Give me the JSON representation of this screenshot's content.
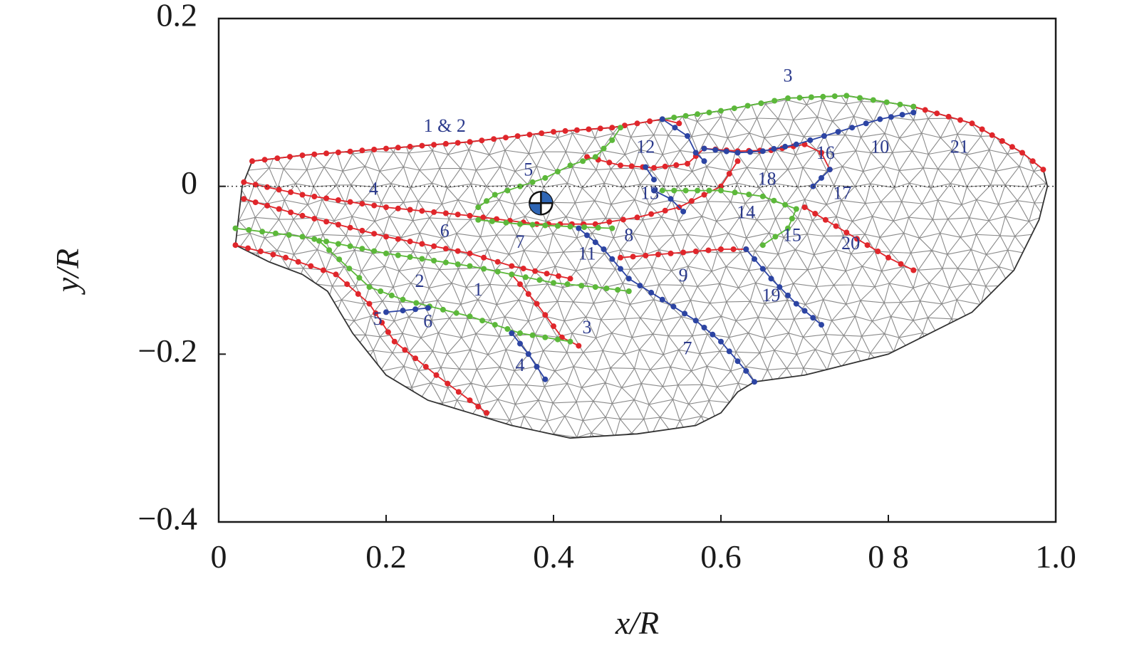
{
  "chart_data": {
    "type": "scatter",
    "title": "",
    "xlabel": "x/R",
    "ylabel": "y/R",
    "xlim": [
      0,
      1.0
    ],
    "ylim": [
      -0.4,
      0.2
    ],
    "x_ticks": [
      0,
      0.2,
      0.4,
      0.6,
      0.8,
      1.0
    ],
    "x_tick_labels": [
      "0",
      "0.2",
      "0.4",
      "0.6",
      "0 8",
      "1.0"
    ],
    "y_ticks": [
      0.2,
      0,
      -0.2,
      -0.4
    ],
    "y_tick_labels": [
      "0.2",
      "0",
      "−0.2",
      "−0.4"
    ],
    "zero_line": true,
    "colors": {
      "red": "#e0262b",
      "green": "#5cb83a",
      "blue": "#2c44a3",
      "mesh": "#8a8a8a",
      "outline": "#333333"
    },
    "outline": [
      [
        0.02,
        -0.07
      ],
      [
        0.06,
        -0.09
      ],
      [
        0.1,
        -0.105
      ],
      [
        0.13,
        -0.125
      ],
      [
        0.16,
        -0.175
      ],
      [
        0.2,
        -0.225
      ],
      [
        0.25,
        -0.255
      ],
      [
        0.3,
        -0.27
      ],
      [
        0.35,
        -0.285
      ],
      [
        0.42,
        -0.3
      ],
      [
        0.5,
        -0.295
      ],
      [
        0.57,
        -0.285
      ],
      [
        0.6,
        -0.27
      ],
      [
        0.62,
        -0.245
      ],
      [
        0.64,
        -0.233
      ],
      [
        0.7,
        -0.225
      ],
      [
        0.8,
        -0.2
      ],
      [
        0.9,
        -0.15
      ],
      [
        0.95,
        -0.1
      ],
      [
        0.98,
        -0.04
      ],
      [
        0.99,
        0.0
      ],
      [
        0.985,
        0.02
      ],
      [
        0.96,
        0.04
      ],
      [
        0.9,
        0.075
      ],
      [
        0.83,
        0.095
      ],
      [
        0.75,
        0.108
      ],
      [
        0.68,
        0.105
      ],
      [
        0.6,
        0.09
      ],
      [
        0.53,
        0.08
      ],
      [
        0.47,
        0.07
      ],
      [
        0.4,
        0.065
      ],
      [
        0.3,
        0.053
      ],
      [
        0.2,
        0.045
      ],
      [
        0.1,
        0.037
      ],
      [
        0.04,
        0.03
      ],
      [
        0.028,
        0.0
      ],
      [
        0.02,
        -0.07
      ]
    ],
    "centroid": {
      "x": 0.385,
      "y": -0.02
    },
    "series": [
      {
        "color": "red",
        "points": [
          [
            0.04,
            0.03
          ],
          [
            0.1,
            0.037
          ],
          [
            0.2,
            0.045
          ],
          [
            0.3,
            0.053
          ],
          [
            0.4,
            0.065
          ],
          [
            0.47,
            0.07
          ],
          [
            0.53,
            0.08
          ],
          [
            0.55,
            0.075
          ]
        ]
      },
      {
        "color": "red",
        "points": [
          [
            0.83,
            0.095
          ],
          [
            0.9,
            0.075
          ],
          [
            0.96,
            0.04
          ],
          [
            0.985,
            0.02
          ]
        ]
      },
      {
        "color": "red",
        "points": [
          [
            0.03,
            0.005
          ],
          [
            0.1,
            -0.01
          ],
          [
            0.2,
            -0.025
          ],
          [
            0.3,
            -0.035
          ],
          [
            0.38,
            -0.045
          ],
          [
            0.45,
            -0.045
          ],
          [
            0.5,
            -0.037
          ],
          [
            0.55,
            -0.025
          ],
          [
            0.58,
            -0.01
          ],
          [
            0.6,
            0.0
          ],
          [
            0.62,
            0.03
          ]
        ]
      },
      {
        "color": "red",
        "points": [
          [
            0.03,
            -0.015
          ],
          [
            0.1,
            -0.035
          ],
          [
            0.2,
            -0.06
          ],
          [
            0.3,
            -0.08
          ],
          [
            0.35,
            -0.095
          ],
          [
            0.42,
            -0.11
          ]
        ]
      },
      {
        "color": "red",
        "points": [
          [
            0.02,
            -0.07
          ],
          [
            0.08,
            -0.085
          ],
          [
            0.14,
            -0.105
          ],
          [
            0.18,
            -0.14
          ],
          [
            0.21,
            -0.185
          ],
          [
            0.26,
            -0.225
          ],
          [
            0.3,
            -0.255
          ],
          [
            0.32,
            -0.27
          ]
        ]
      },
      {
        "color": "red",
        "points": [
          [
            0.35,
            -0.105
          ],
          [
            0.38,
            -0.14
          ],
          [
            0.41,
            -0.18
          ],
          [
            0.43,
            -0.19
          ]
        ]
      },
      {
        "color": "red",
        "points": [
          [
            0.44,
            0.035
          ],
          [
            0.48,
            0.025
          ],
          [
            0.52,
            0.022
          ],
          [
            0.56,
            0.027
          ],
          [
            0.58,
            0.045
          ],
          [
            0.62,
            0.042
          ],
          [
            0.66,
            0.043
          ],
          [
            0.7,
            0.05
          ],
          [
            0.72,
            0.04
          ],
          [
            0.73,
            0.02
          ]
        ]
      },
      {
        "color": "red",
        "points": [
          [
            0.48,
            -0.085
          ],
          [
            0.54,
            -0.08
          ],
          [
            0.6,
            -0.075
          ],
          [
            0.63,
            -0.075
          ]
        ]
      },
      {
        "color": "red",
        "points": [
          [
            0.7,
            -0.025
          ],
          [
            0.75,
            -0.055
          ],
          [
            0.8,
            -0.085
          ],
          [
            0.83,
            -0.1
          ]
        ]
      },
      {
        "color": "green",
        "points": [
          [
            0.02,
            -0.05
          ],
          [
            0.1,
            -0.06
          ],
          [
            0.2,
            -0.08
          ],
          [
            0.3,
            -0.095
          ],
          [
            0.35,
            -0.105
          ],
          [
            0.4,
            -0.115
          ],
          [
            0.45,
            -0.12
          ],
          [
            0.49,
            -0.125
          ]
        ]
      },
      {
        "color": "green",
        "points": [
          [
            0.12,
            -0.065
          ],
          [
            0.18,
            -0.12
          ],
          [
            0.22,
            -0.135
          ],
          [
            0.3,
            -0.155
          ],
          [
            0.36,
            -0.175
          ],
          [
            0.42,
            -0.185
          ]
        ]
      },
      {
        "color": "green",
        "points": [
          [
            0.31,
            -0.025
          ],
          [
            0.33,
            -0.01
          ],
          [
            0.36,
            0.0
          ],
          [
            0.39,
            0.01
          ],
          [
            0.42,
            0.025
          ],
          [
            0.45,
            0.035
          ],
          [
            0.47,
            0.055
          ],
          [
            0.48,
            0.07
          ]
        ]
      },
      {
        "color": "green",
        "points": [
          [
            0.31,
            -0.04
          ],
          [
            0.36,
            -0.045
          ],
          [
            0.42,
            -0.048
          ],
          [
            0.47,
            -0.05
          ]
        ]
      },
      {
        "color": "green",
        "points": [
          [
            0.53,
            0.08
          ],
          [
            0.6,
            0.09
          ],
          [
            0.68,
            0.105
          ],
          [
            0.75,
            0.108
          ],
          [
            0.83,
            0.095
          ]
        ]
      },
      {
        "color": "green",
        "points": [
          [
            0.53,
            -0.005
          ],
          [
            0.6,
            -0.005
          ],
          [
            0.65,
            -0.012
          ],
          [
            0.69,
            -0.027
          ],
          [
            0.68,
            -0.05
          ],
          [
            0.65,
            -0.07
          ]
        ]
      },
      {
        "color": "blue",
        "points": [
          [
            0.53,
            0.08
          ],
          [
            0.56,
            0.06
          ],
          [
            0.57,
            0.04
          ],
          [
            0.58,
            0.03
          ]
        ]
      },
      {
        "color": "blue",
        "points": [
          [
            0.58,
            0.045
          ],
          [
            0.62,
            0.04
          ],
          [
            0.65,
            0.042
          ],
          [
            0.69,
            0.05
          ],
          [
            0.74,
            0.065
          ],
          [
            0.79,
            0.08
          ],
          [
            0.83,
            0.088
          ]
        ]
      },
      {
        "color": "blue",
        "points": [
          [
            0.51,
            0.023
          ],
          [
            0.52,
            0.008
          ]
        ]
      },
      {
        "color": "blue",
        "points": [
          [
            0.52,
            -0.005
          ],
          [
            0.54,
            -0.015
          ],
          [
            0.555,
            -0.03
          ]
        ]
      },
      {
        "color": "blue",
        "points": [
          [
            0.43,
            -0.05
          ],
          [
            0.46,
            -0.075
          ],
          [
            0.49,
            -0.11
          ],
          [
            0.53,
            -0.135
          ],
          [
            0.57,
            -0.16
          ],
          [
            0.6,
            -0.185
          ],
          [
            0.63,
            -0.22
          ],
          [
            0.64,
            -0.233
          ]
        ]
      },
      {
        "color": "blue",
        "points": [
          [
            0.63,
            -0.075
          ],
          [
            0.66,
            -0.11
          ],
          [
            0.69,
            -0.14
          ],
          [
            0.72,
            -0.165
          ]
        ]
      },
      {
        "color": "blue",
        "points": [
          [
            0.35,
            -0.175
          ],
          [
            0.37,
            -0.2
          ],
          [
            0.39,
            -0.23
          ]
        ]
      },
      {
        "color": "blue",
        "points": [
          [
            0.2,
            -0.15
          ],
          [
            0.22,
            -0.148
          ],
          [
            0.25,
            -0.145
          ]
        ]
      },
      {
        "color": "blue",
        "points": [
          [
            0.71,
            0.0
          ],
          [
            0.72,
            0.01
          ],
          [
            0.73,
            0.02
          ]
        ]
      }
    ],
    "annotations": [
      {
        "text": "1 & 2",
        "x": 0.27,
        "y": 0.07
      },
      {
        "text": "3",
        "x": 0.68,
        "y": 0.13
      },
      {
        "text": "4",
        "x": 0.185,
        "y": -0.005
      },
      {
        "text": "5",
        "x": 0.37,
        "y": 0.018
      },
      {
        "text": "6",
        "x": 0.27,
        "y": -0.055
      },
      {
        "text": "7",
        "x": 0.36,
        "y": -0.068
      },
      {
        "text": "8",
        "x": 0.49,
        "y": -0.06
      },
      {
        "text": "9",
        "x": 0.555,
        "y": -0.108
      },
      {
        "text": "10",
        "x": 0.79,
        "y": 0.045
      },
      {
        "text": "11",
        "x": 0.44,
        "y": -0.082
      },
      {
        "text": "12",
        "x": 0.51,
        "y": 0.045
      },
      {
        "text": "13",
        "x": 0.515,
        "y": -0.01
      },
      {
        "text": "14",
        "x": 0.63,
        "y": -0.033
      },
      {
        "text": "15",
        "x": 0.685,
        "y": -0.06
      },
      {
        "text": "16",
        "x": 0.725,
        "y": 0.038
      },
      {
        "text": "17",
        "x": 0.745,
        "y": -0.01
      },
      {
        "text": "18",
        "x": 0.655,
        "y": 0.007
      },
      {
        "text": "19",
        "x": 0.66,
        "y": -0.132
      },
      {
        "text": "20",
        "x": 0.755,
        "y": -0.07
      },
      {
        "text": "21",
        "x": 0.885,
        "y": 0.045
      },
      {
        "text": "1",
        "x": 0.31,
        "y": -0.125
      },
      {
        "text": "2",
        "x": 0.24,
        "y": -0.115
      },
      {
        "text": "3",
        "x": 0.44,
        "y": -0.17
      },
      {
        "text": "4",
        "x": 0.36,
        "y": -0.215
      },
      {
        "text": "5",
        "x": 0.19,
        "y": -0.16
      },
      {
        "text": "6",
        "x": 0.25,
        "y": -0.163
      },
      {
        "text": "7",
        "x": 0.56,
        "y": -0.195
      }
    ]
  }
}
